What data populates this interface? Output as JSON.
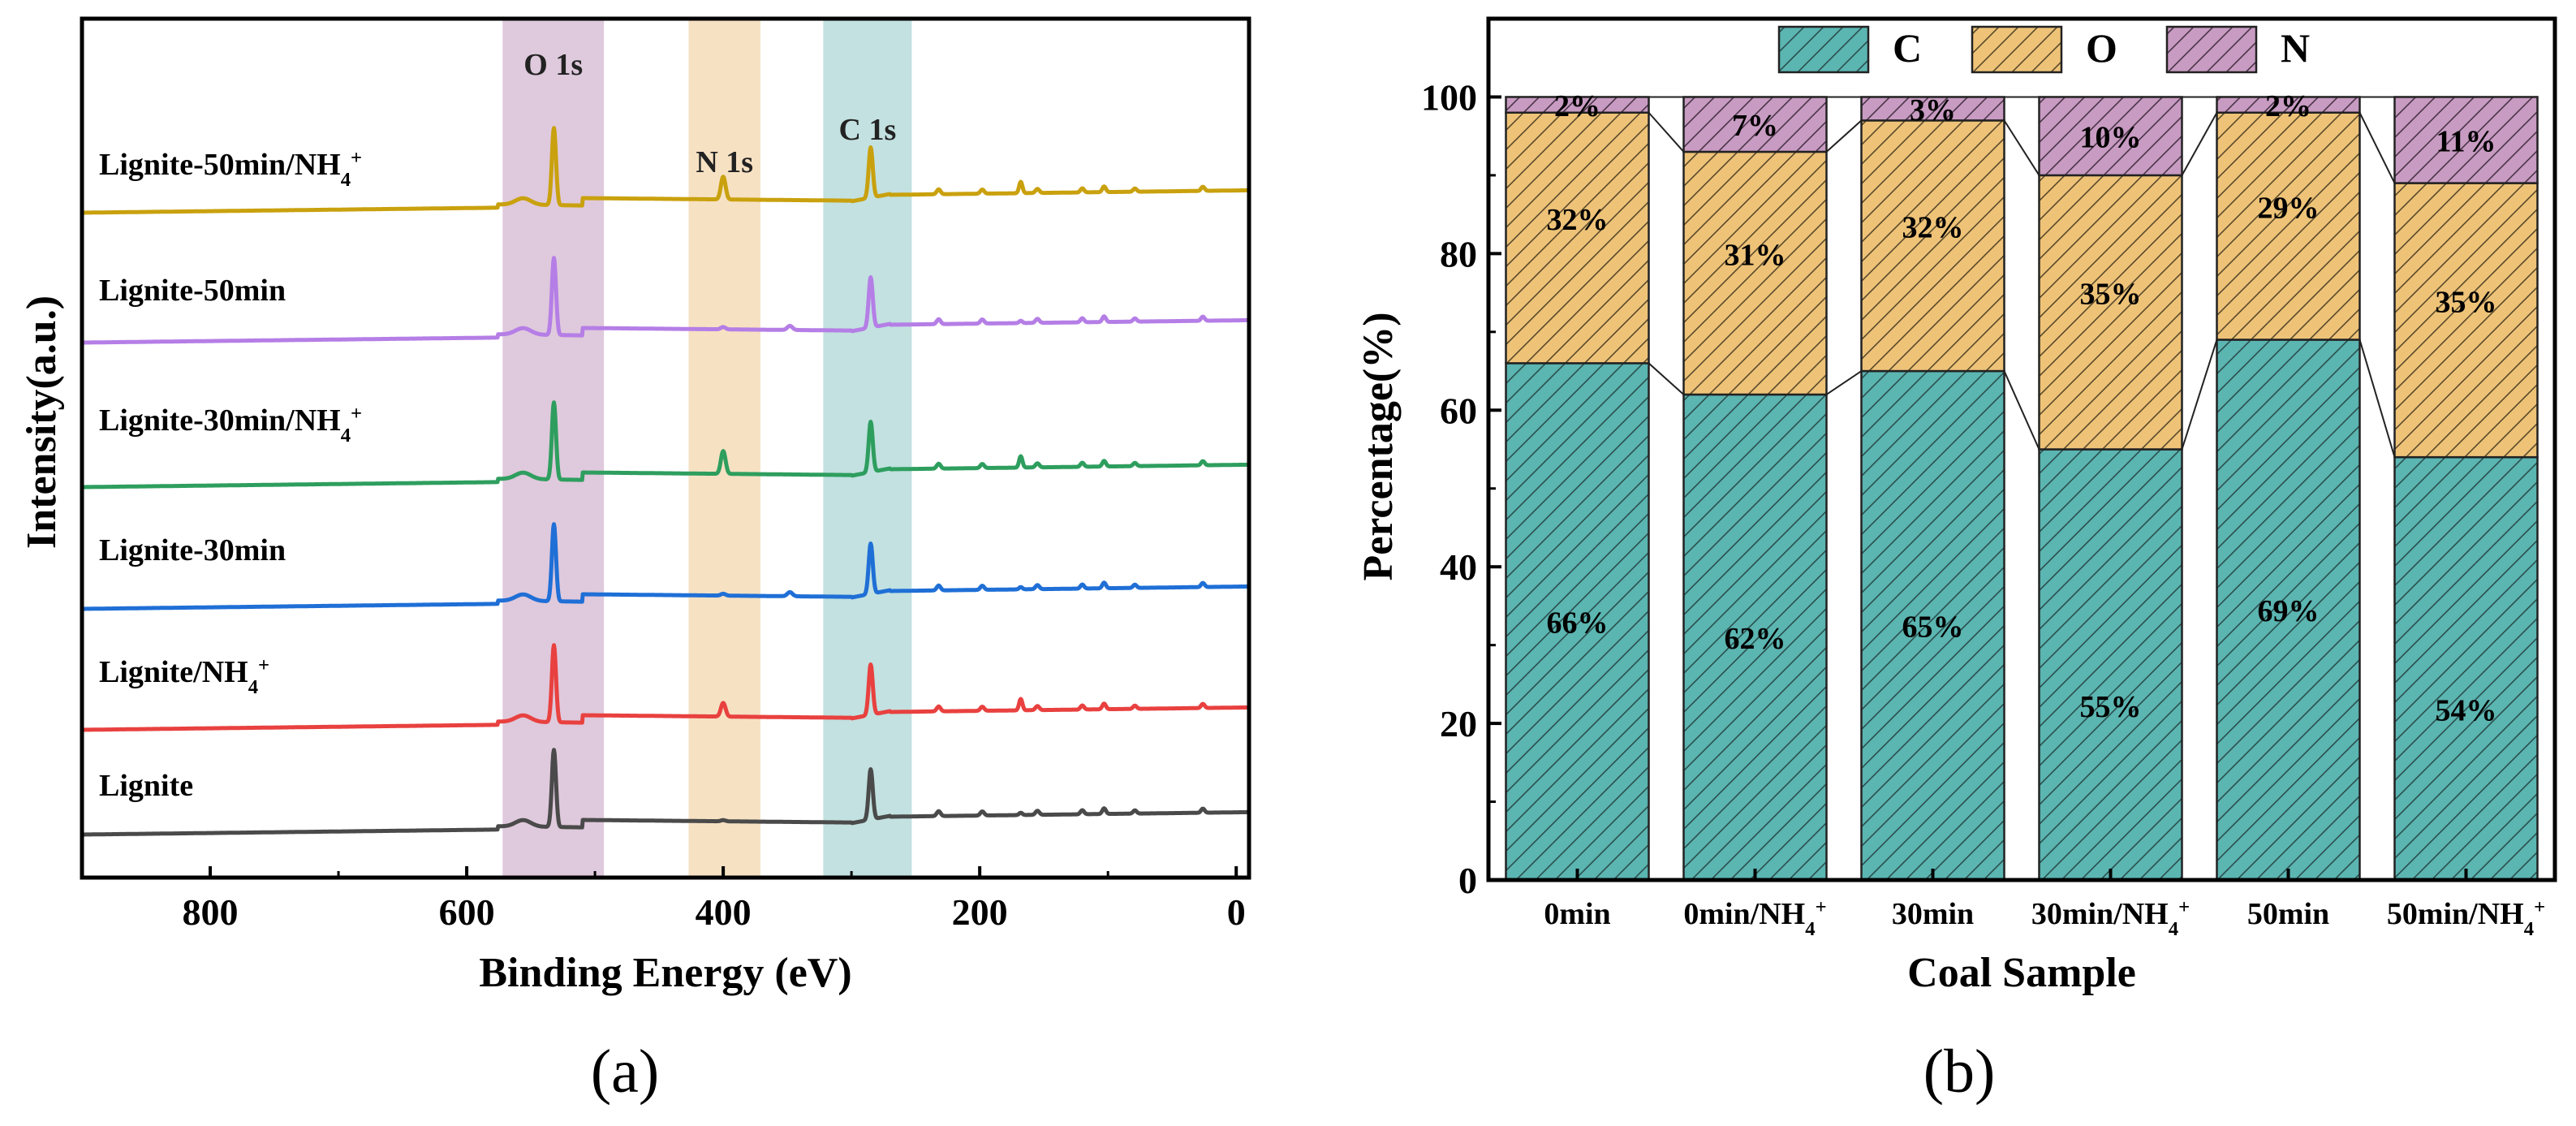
{
  "chart_data": [
    {
      "type": "line",
      "panel_label": "(a)",
      "xlabel": "Binding Energy (eV)",
      "ylabel": "Intensity(a.u.)",
      "xlim": [
        900,
        -10
      ],
      "x_reversed": true,
      "xticks": [
        800,
        600,
        400,
        200,
        0
      ],
      "yticks_shown": false,
      "bands": [
        {
          "label": "O 1s",
          "from": 572,
          "to": 493,
          "color": "#d9bfd6"
        },
        {
          "label": "N 1s",
          "from": 427,
          "to": 371,
          "color": "#f5dcb8"
        },
        {
          "label": "C 1s",
          "from": 322,
          "to": 253,
          "color": "#b7dcda"
        }
      ],
      "series": [
        {
          "name": "Lignite",
          "color": "#4a4a4a",
          "offset": 0,
          "n_peak": 0.05,
          "extra_peak": 0
        },
        {
          "name": "Lignite/NH4+",
          "color": "#e8413f",
          "offset": 1,
          "n_peak": 0.6,
          "extra_peak": 0
        },
        {
          "name": "Lignite-30min",
          "color": "#1f6fd6",
          "offset": 2,
          "n_peak": 0.08,
          "extra_peak": 0.5
        },
        {
          "name": "Lignite-30min/NH4+",
          "color": "#2e9e5e",
          "offset": 3,
          "n_peak": 1.0,
          "extra_peak": 0
        },
        {
          "name": "Lignite-50min",
          "color": "#b57ee6",
          "offset": 4,
          "n_peak": 0.1,
          "extra_peak": 0.5
        },
        {
          "name": "Lignite-50min/NH4+",
          "color": "#c9a10e",
          "offset": 5,
          "n_peak": 1.0,
          "extra_peak": 0
        }
      ]
    },
    {
      "type": "bar",
      "stacked": true,
      "panel_label": "(b)",
      "xlabel": "Coal Sample",
      "ylabel": "Percentage(%)",
      "ylim": [
        0,
        110
      ],
      "yticks": [
        0,
        20,
        40,
        60,
        80,
        100
      ],
      "categories": [
        "0min",
        "0min/NH4+",
        "30min",
        "30min/NH4+",
        "50min",
        "50min/NH4+"
      ],
      "legend_position": "top",
      "series": [
        {
          "name": "C",
          "color": "#5bb5b1",
          "values": [
            66,
            62,
            65,
            55,
            69,
            54
          ],
          "labels": [
            "66%",
            "62%",
            "65%",
            "55%",
            "69%",
            "54%"
          ]
        },
        {
          "name": "O",
          "color": "#eec378",
          "values": [
            32,
            31,
            32,
            35,
            29,
            35
          ],
          "labels": [
            "32%",
            "31%",
            "32%",
            "35%",
            "29%",
            "35%"
          ]
        },
        {
          "name": "N",
          "color": "#c89bc2",
          "values": [
            2,
            7,
            3,
            10,
            2,
            11
          ],
          "labels": [
            "2%",
            "7%",
            "3%",
            "10%",
            "2%",
            "11%"
          ]
        }
      ]
    }
  ]
}
